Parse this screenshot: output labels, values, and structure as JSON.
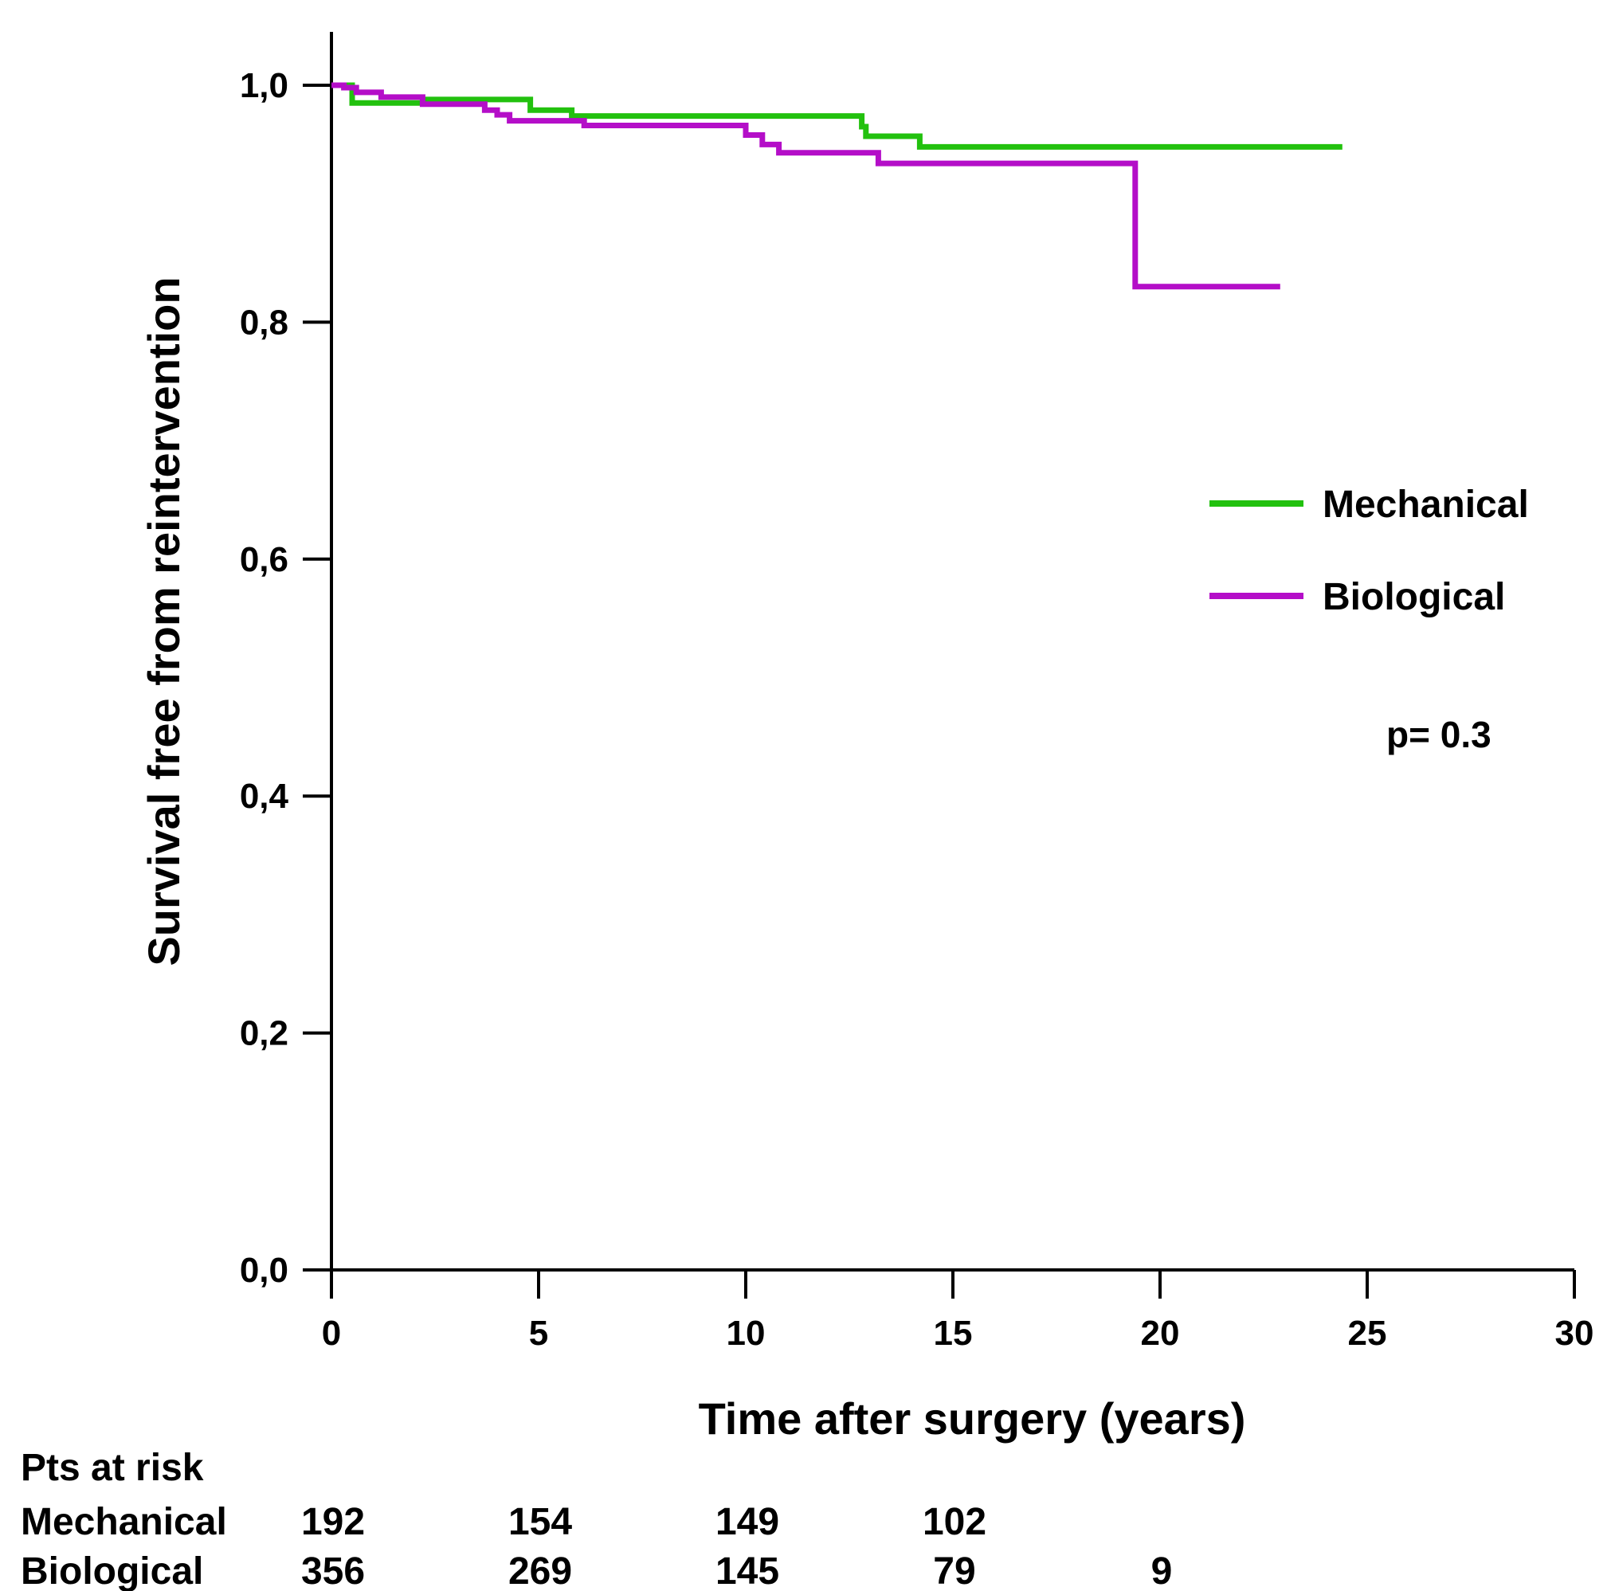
{
  "chart_data": {
    "type": "line",
    "title": "",
    "xlabel": "Time after surgery (years)",
    "ylabel": "Survival free from reintervention",
    "xlim": [
      0,
      30
    ],
    "ylim": [
      0,
      1.05
    ],
    "x_ticks": [
      0,
      5,
      10,
      15,
      20,
      25,
      30
    ],
    "x_tick_labels": [
      "0",
      "5",
      "10",
      "15",
      "20",
      "25",
      "30"
    ],
    "y_ticks": [
      0,
      0.2,
      0.4,
      0.6,
      0.8,
      1.0
    ],
    "y_tick_labels": [
      "0,0",
      "0,2",
      "0,4",
      "0,6",
      "0,8",
      "1,0"
    ],
    "grid": false,
    "legend_position": "right",
    "annotation": "p= 0.3",
    "series": [
      {
        "name": "Mechanical",
        "color": "#22c10e",
        "step": true,
        "points": [
          [
            0,
            1.0
          ],
          [
            0.5,
            0.985
          ],
          [
            2.2,
            0.985
          ],
          [
            2.3,
            0.988
          ],
          [
            4.7,
            0.988
          ],
          [
            4.8,
            0.979
          ],
          [
            5.7,
            0.979
          ],
          [
            5.8,
            0.974
          ],
          [
            12.7,
            0.974
          ],
          [
            12.8,
            0.965
          ],
          [
            12.9,
            0.957
          ],
          [
            14.1,
            0.957
          ],
          [
            14.2,
            0.948
          ],
          [
            24.4,
            0.948
          ]
        ]
      },
      {
        "name": "Biological",
        "color": "#b40ec8",
        "step": true,
        "points": [
          [
            0,
            1.0
          ],
          [
            0.3,
            0.998
          ],
          [
            0.6,
            0.994
          ],
          [
            1.2,
            0.99
          ],
          [
            2.2,
            0.984
          ],
          [
            3.7,
            0.979
          ],
          [
            4.0,
            0.975
          ],
          [
            4.3,
            0.97
          ],
          [
            6.1,
            0.966
          ],
          [
            9.9,
            0.966
          ],
          [
            10.0,
            0.958
          ],
          [
            10.4,
            0.95
          ],
          [
            10.8,
            0.943
          ],
          [
            13.1,
            0.943
          ],
          [
            13.2,
            0.934
          ],
          [
            19.3,
            0.934
          ],
          [
            19.4,
            0.83
          ],
          [
            22.9,
            0.83
          ]
        ]
      }
    ],
    "risk_table": {
      "title": "Pts at risk",
      "x": [
        0,
        5,
        10,
        15,
        20
      ],
      "rows": [
        {
          "label": "Mechanical",
          "values": [
            "192",
            "154",
            "149",
            "102",
            ""
          ]
        },
        {
          "label": "Biological",
          "values": [
            "356",
            "269",
            "145",
            "79",
            "9"
          ]
        }
      ]
    }
  }
}
